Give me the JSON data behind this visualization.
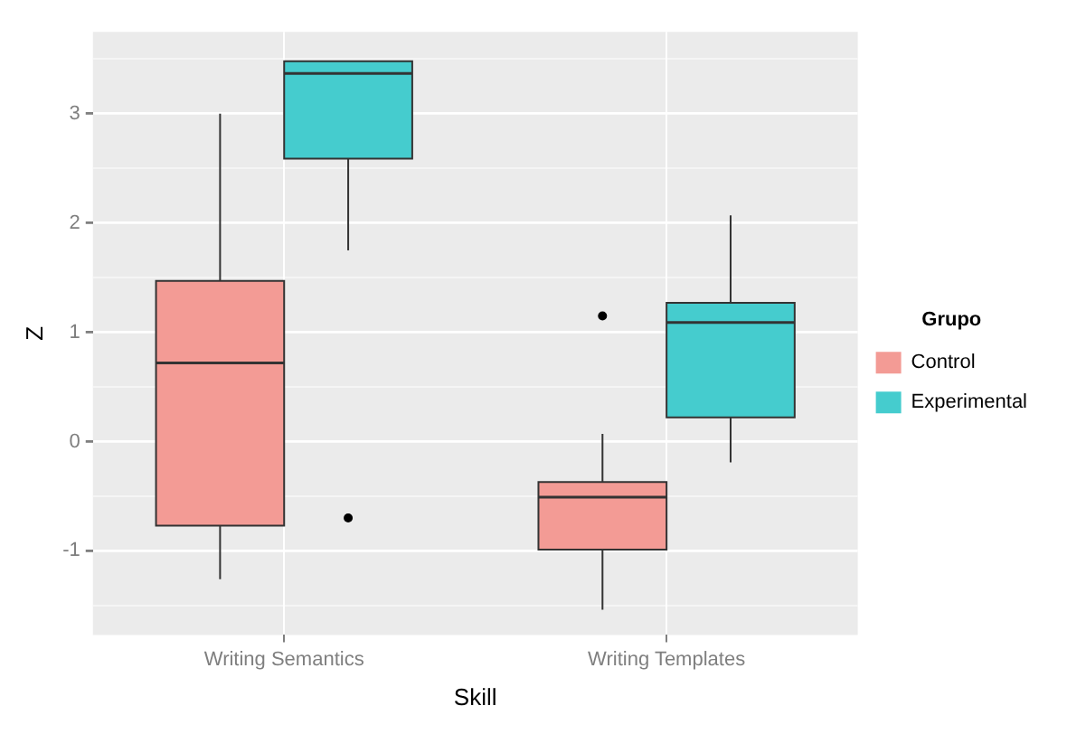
{
  "chart_data": {
    "type": "box",
    "xlabel": "Skill",
    "ylabel": "Z",
    "legend_title": "Grupo",
    "legend": "right",
    "grid": true,
    "categories": [
      "Writing Semantics",
      "Writing Templates"
    ],
    "ylim": [
      -1.77,
      3.75
    ],
    "yticks": [
      {
        "value": -1.5,
        "label": null
      },
      -1,
      {
        "value": -0.5,
        "label": null
      },
      0,
      {
        "value": 0.5,
        "label": null
      },
      1,
      {
        "value": 1.5,
        "label": null
      },
      2,
      {
        "value": 2.5,
        "label": null
      },
      3,
      {
        "value": 3.5,
        "label": null
      }
    ],
    "series": [
      {
        "name": "Control",
        "color": "#f39b95",
        "boxes": [
          {
            "low": -1.26,
            "q1": -0.77,
            "median": 0.72,
            "q3": 1.47,
            "high": 3.0
          },
          {
            "low": -1.54,
            "q1": -0.99,
            "median": -0.51,
            "q3": -0.37,
            "high": 0.07,
            "outliers": [
              1.15
            ]
          }
        ]
      },
      {
        "name": "Experimental",
        "color": "#45ccce",
        "boxes": [
          {
            "low": 1.75,
            "q1": 2.59,
            "median": 3.37,
            "q3": 3.48,
            "high": 3.48,
            "outliers": [
              -0.7
            ]
          },
          {
            "low": -0.19,
            "q1": 0.22,
            "median": 1.09,
            "q3": 1.27,
            "high": 2.07
          }
        ]
      }
    ]
  }
}
